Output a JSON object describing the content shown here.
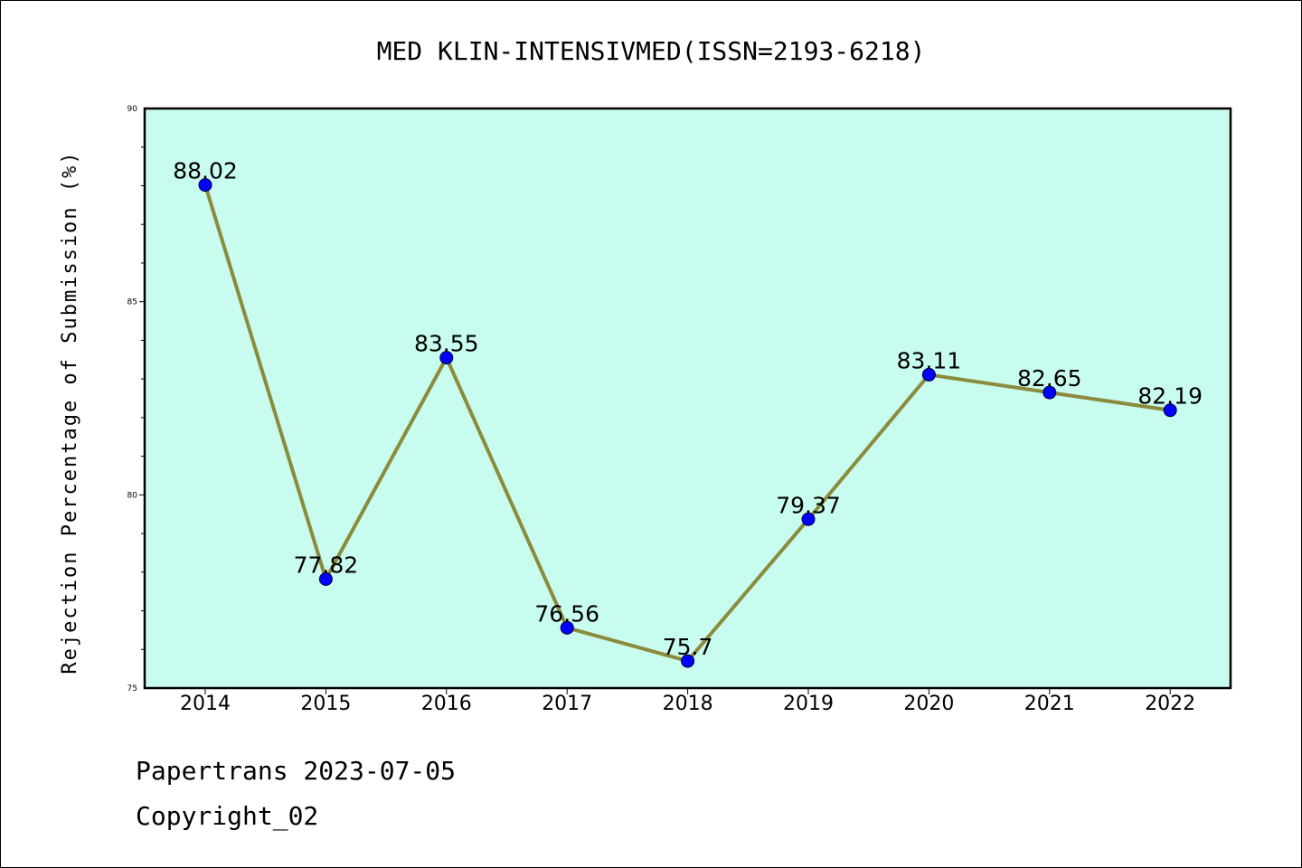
{
  "chart_data": {
    "type": "line",
    "title": "MED KLIN-INTENSIVMED(ISSN=2193-6218)",
    "xlabel": "",
    "ylabel": "Rejection Percentage of Submission (%)",
    "categories": [
      "2014",
      "2015",
      "2016",
      "2017",
      "2018",
      "2019",
      "2020",
      "2021",
      "2022"
    ],
    "values": [
      88.02,
      77.82,
      83.55,
      76.56,
      75.7,
      79.37,
      83.11,
      82.65,
      82.19
    ],
    "data_labels": [
      "88.02",
      "77.82",
      "83.55",
      "76.56",
      "75.7",
      "79.37",
      "83.11",
      "82.65",
      "82.19"
    ],
    "ylim": [
      75,
      90
    ],
    "yticks": [
      75,
      80,
      85,
      90
    ],
    "grid": false,
    "legend": "none",
    "colors": {
      "plot_background": "#c8fcee",
      "line": "#8b8b3c",
      "marker": "#0000ff"
    }
  },
  "footer": {
    "line1": "Papertrans 2023-07-05",
    "line2": "Copyright_02"
  }
}
